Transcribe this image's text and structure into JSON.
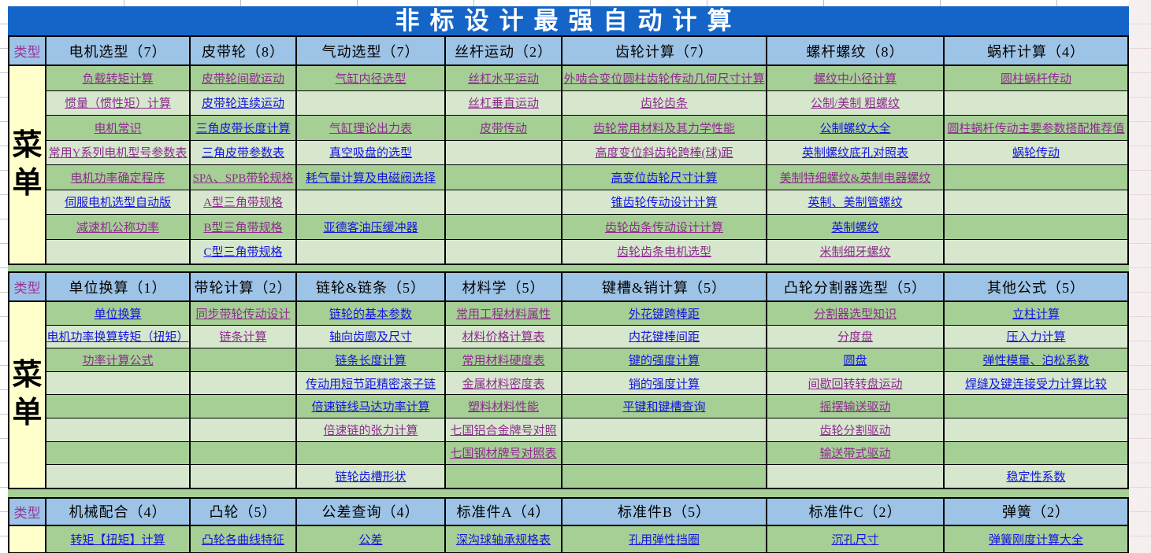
{
  "title": "非标设计最强自动计算",
  "type_label": "类型",
  "menu_label": "菜单",
  "colors": {
    "title_bg": "#1565c8",
    "header_bg": "#9dc3e6",
    "cell_green_dark": "#a6cf96",
    "cell_green_light": "#d6e7ce",
    "menu_bg": "#ffffcc",
    "link_unvisited": "#1414dd",
    "link_visited": "#8e2b8e",
    "type_text": "#993399"
  },
  "sections": [
    {
      "rows": 8,
      "menu": true,
      "columns": [
        {
          "header": "电机选型（7）",
          "links": [
            {
              "text": "负载转矩计算",
              "visited": true
            },
            {
              "text": "惯量（惯性矩）计算",
              "visited": true
            },
            {
              "text": "电机常识",
              "visited": true
            },
            {
              "text": "常用Y系列电机型号参数表",
              "visited": true
            },
            {
              "text": "电机功率确定程序",
              "visited": true
            },
            {
              "text": "伺服电机选型自动版",
              "visited": false
            },
            {
              "text": "减速机公称功率",
              "visited": true
            },
            null
          ]
        },
        {
          "header": "皮带轮（8）",
          "links": [
            {
              "text": "皮带轮间歇运动",
              "visited": true
            },
            {
              "text": "皮带轮连续运动",
              "visited": false
            },
            {
              "text": "三角皮带长度计算",
              "visited": false
            },
            {
              "text": "三角皮带参数表",
              "visited": false
            },
            {
              "text": "SPA、SPB带轮规格",
              "visited": true
            },
            {
              "text": "A型三角带规格",
              "visited": true
            },
            {
              "text": "B型三角带规格",
              "visited": true
            },
            {
              "text": "C型三角带规格",
              "visited": false
            }
          ]
        },
        {
          "header": "气动选型（7）",
          "links": [
            {
              "text": "气缸内径选型",
              "visited": true
            },
            null,
            {
              "text": "气缸理论出力表",
              "visited": true
            },
            {
              "text": "真空吸盘的选型",
              "visited": false
            },
            {
              "text": "耗气量计算及电磁阀选择",
              "visited": false
            },
            null,
            {
              "text": "亚德客油压缓冲器",
              "visited": false
            },
            null
          ]
        },
        {
          "header": "丝杆运动（2）",
          "links": [
            {
              "text": "丝杠水平运动",
              "visited": true
            },
            {
              "text": "丝杠垂直运动",
              "visited": true
            },
            {
              "text": "皮带传动",
              "visited": true
            },
            null,
            null,
            null,
            null,
            null
          ]
        },
        {
          "header": "齿轮计算（7）",
          "links": [
            {
              "text": "外啮合变位圆柱齿轮传动几何尺寸计算",
              "visited": true
            },
            {
              "text": "齿轮齿条",
              "visited": true
            },
            {
              "text": "齿轮常用材料及其力学性能",
              "visited": true
            },
            {
              "text": "高度变位斜齿轮跨棒(球)距",
              "visited": true
            },
            {
              "text": "高变位齿轮尺寸计算",
              "visited": false
            },
            {
              "text": "锥齿轮传动设计计算",
              "visited": false
            },
            {
              "text": "齿轮齿条传动设计计算",
              "visited": true
            },
            {
              "text": "齿轮齿条电机选型",
              "visited": true
            }
          ]
        },
        {
          "header": "螺杆螺纹（8）",
          "links": [
            {
              "text": "螺纹中小径计算",
              "visited": true
            },
            {
              "text": "公制/美制 粗螺纹",
              "visited": true
            },
            {
              "text": "公制螺纹大全",
              "visited": false
            },
            {
              "text": "英制螺纹底孔对照表",
              "visited": false
            },
            {
              "text": "美制特细螺纹&英制电器螺纹",
              "visited": true
            },
            {
              "text": "英制、美制管螺纹",
              "visited": false
            },
            {
              "text": "英制螺纹",
              "visited": false
            },
            {
              "text": "米制细牙螺纹",
              "visited": true
            }
          ]
        },
        {
          "header": "蜗杆计算（4）",
          "links": [
            {
              "text": "圆柱蜗杆传动",
              "visited": true
            },
            null,
            {
              "text": "圆柱蜗杆传动主要参数搭配推荐值",
              "visited": true
            },
            {
              "text": "蜗轮传动",
              "visited": false
            },
            null,
            null,
            null,
            null
          ]
        }
      ]
    },
    {
      "rows": 8,
      "menu": true,
      "dark_cells": [
        [
          7,
          3
        ],
        [
          7,
          4
        ]
      ],
      "columns": [
        {
          "header": "单位换算（1）",
          "links": [
            {
              "text": "单位换算",
              "visited": false
            },
            {
              "text": "电机功率换算转矩（扭矩）",
              "visited": false
            },
            {
              "text": "功率计算公式",
              "visited": true
            },
            null,
            null,
            null,
            null,
            null
          ]
        },
        {
          "header": "带轮计算（2）",
          "links": [
            {
              "text": "同步带轮传动设计",
              "visited": true
            },
            {
              "text": "链条计算",
              "visited": true
            },
            null,
            null,
            null,
            null,
            null,
            null
          ]
        },
        {
          "header": "链轮&链条（5）",
          "links": [
            {
              "text": "链轮的基本参数",
              "visited": false
            },
            {
              "text": "轴向齿廓及尺寸",
              "visited": false
            },
            {
              "text": "链条长度计算",
              "visited": false
            },
            {
              "text": "传动用短节距精密滚子链",
              "visited": false
            },
            {
              "text": "倍速链线马达功率计算",
              "visited": false
            },
            {
              "text": "倍速链的张力计算",
              "visited": true
            },
            null,
            {
              "text": "链轮齿槽形状",
              "visited": false
            }
          ]
        },
        {
          "header": "材料学（5）",
          "links": [
            {
              "text": "常用工程材料属性",
              "visited": true
            },
            {
              "text": "材料价格计算表",
              "visited": true
            },
            {
              "text": "常用材料硬度表",
              "visited": true
            },
            {
              "text": "金属材料密度表",
              "visited": true
            },
            {
              "text": "塑料材料性能",
              "visited": true
            },
            {
              "text": "七国铝合金牌号对照",
              "visited": true
            },
            {
              "text": "七国钢材牌号对照表",
              "visited": true
            },
            null
          ]
        },
        {
          "header": "键槽&销计算（5）",
          "links": [
            {
              "text": "外花键跨棒距",
              "visited": false
            },
            {
              "text": "内花键棒间距",
              "visited": false
            },
            {
              "text": "键的强度计算",
              "visited": false
            },
            {
              "text": "销的强度计算",
              "visited": false
            },
            {
              "text": "平键和键槽查询",
              "visited": false
            },
            null,
            null,
            null
          ]
        },
        {
          "header": "凸轮分割器选型（5）",
          "links": [
            {
              "text": "分割器选型知识",
              "visited": true
            },
            {
              "text": "分度盘",
              "visited": true
            },
            {
              "text": "圆盘",
              "visited": false
            },
            {
              "text": "间歇回转转盘运动",
              "visited": true
            },
            {
              "text": "摇摆输送驱动",
              "visited": true
            },
            {
              "text": "齿轮分割驱动",
              "visited": true
            },
            {
              "text": "输送带式驱动",
              "visited": true
            },
            null
          ]
        },
        {
          "header": "其他公式（5）",
          "links": [
            {
              "text": "立柱计算",
              "visited": false
            },
            {
              "text": "压入力计算",
              "visited": false
            },
            {
              "text": "弹性模量、泊松系数",
              "visited": false
            },
            {
              "text": "焊缝及键连接受力计算比较",
              "visited": false
            },
            null,
            null,
            null,
            {
              "text": "稳定性系数",
              "visited": false
            }
          ]
        }
      ]
    },
    {
      "rows": 1,
      "menu": false,
      "columns": [
        {
          "header": "机械配合（4）",
          "links": [
            {
              "text": "转矩【扭矩】计算",
              "visited": false
            }
          ]
        },
        {
          "header": "凸轮（5）",
          "links": [
            {
              "text": "凸轮各曲线特征",
              "visited": false
            }
          ]
        },
        {
          "header": "公差查询（4）",
          "links": [
            {
              "text": "公差",
              "visited": false
            }
          ]
        },
        {
          "header": "标准件A（4）",
          "links": [
            {
              "text": "深沟球轴承规格表",
              "visited": false
            }
          ]
        },
        {
          "header": "标准件B（5）",
          "links": [
            {
              "text": "孔用弹性挡圈",
              "visited": false
            }
          ]
        },
        {
          "header": "标准件C（2）",
          "links": [
            {
              "text": "沉孔尺寸",
              "visited": false
            }
          ]
        },
        {
          "header": "弹簧（2）",
          "links": [
            {
              "text": "弹簧刚度计算大全",
              "visited": false
            }
          ]
        }
      ]
    }
  ]
}
